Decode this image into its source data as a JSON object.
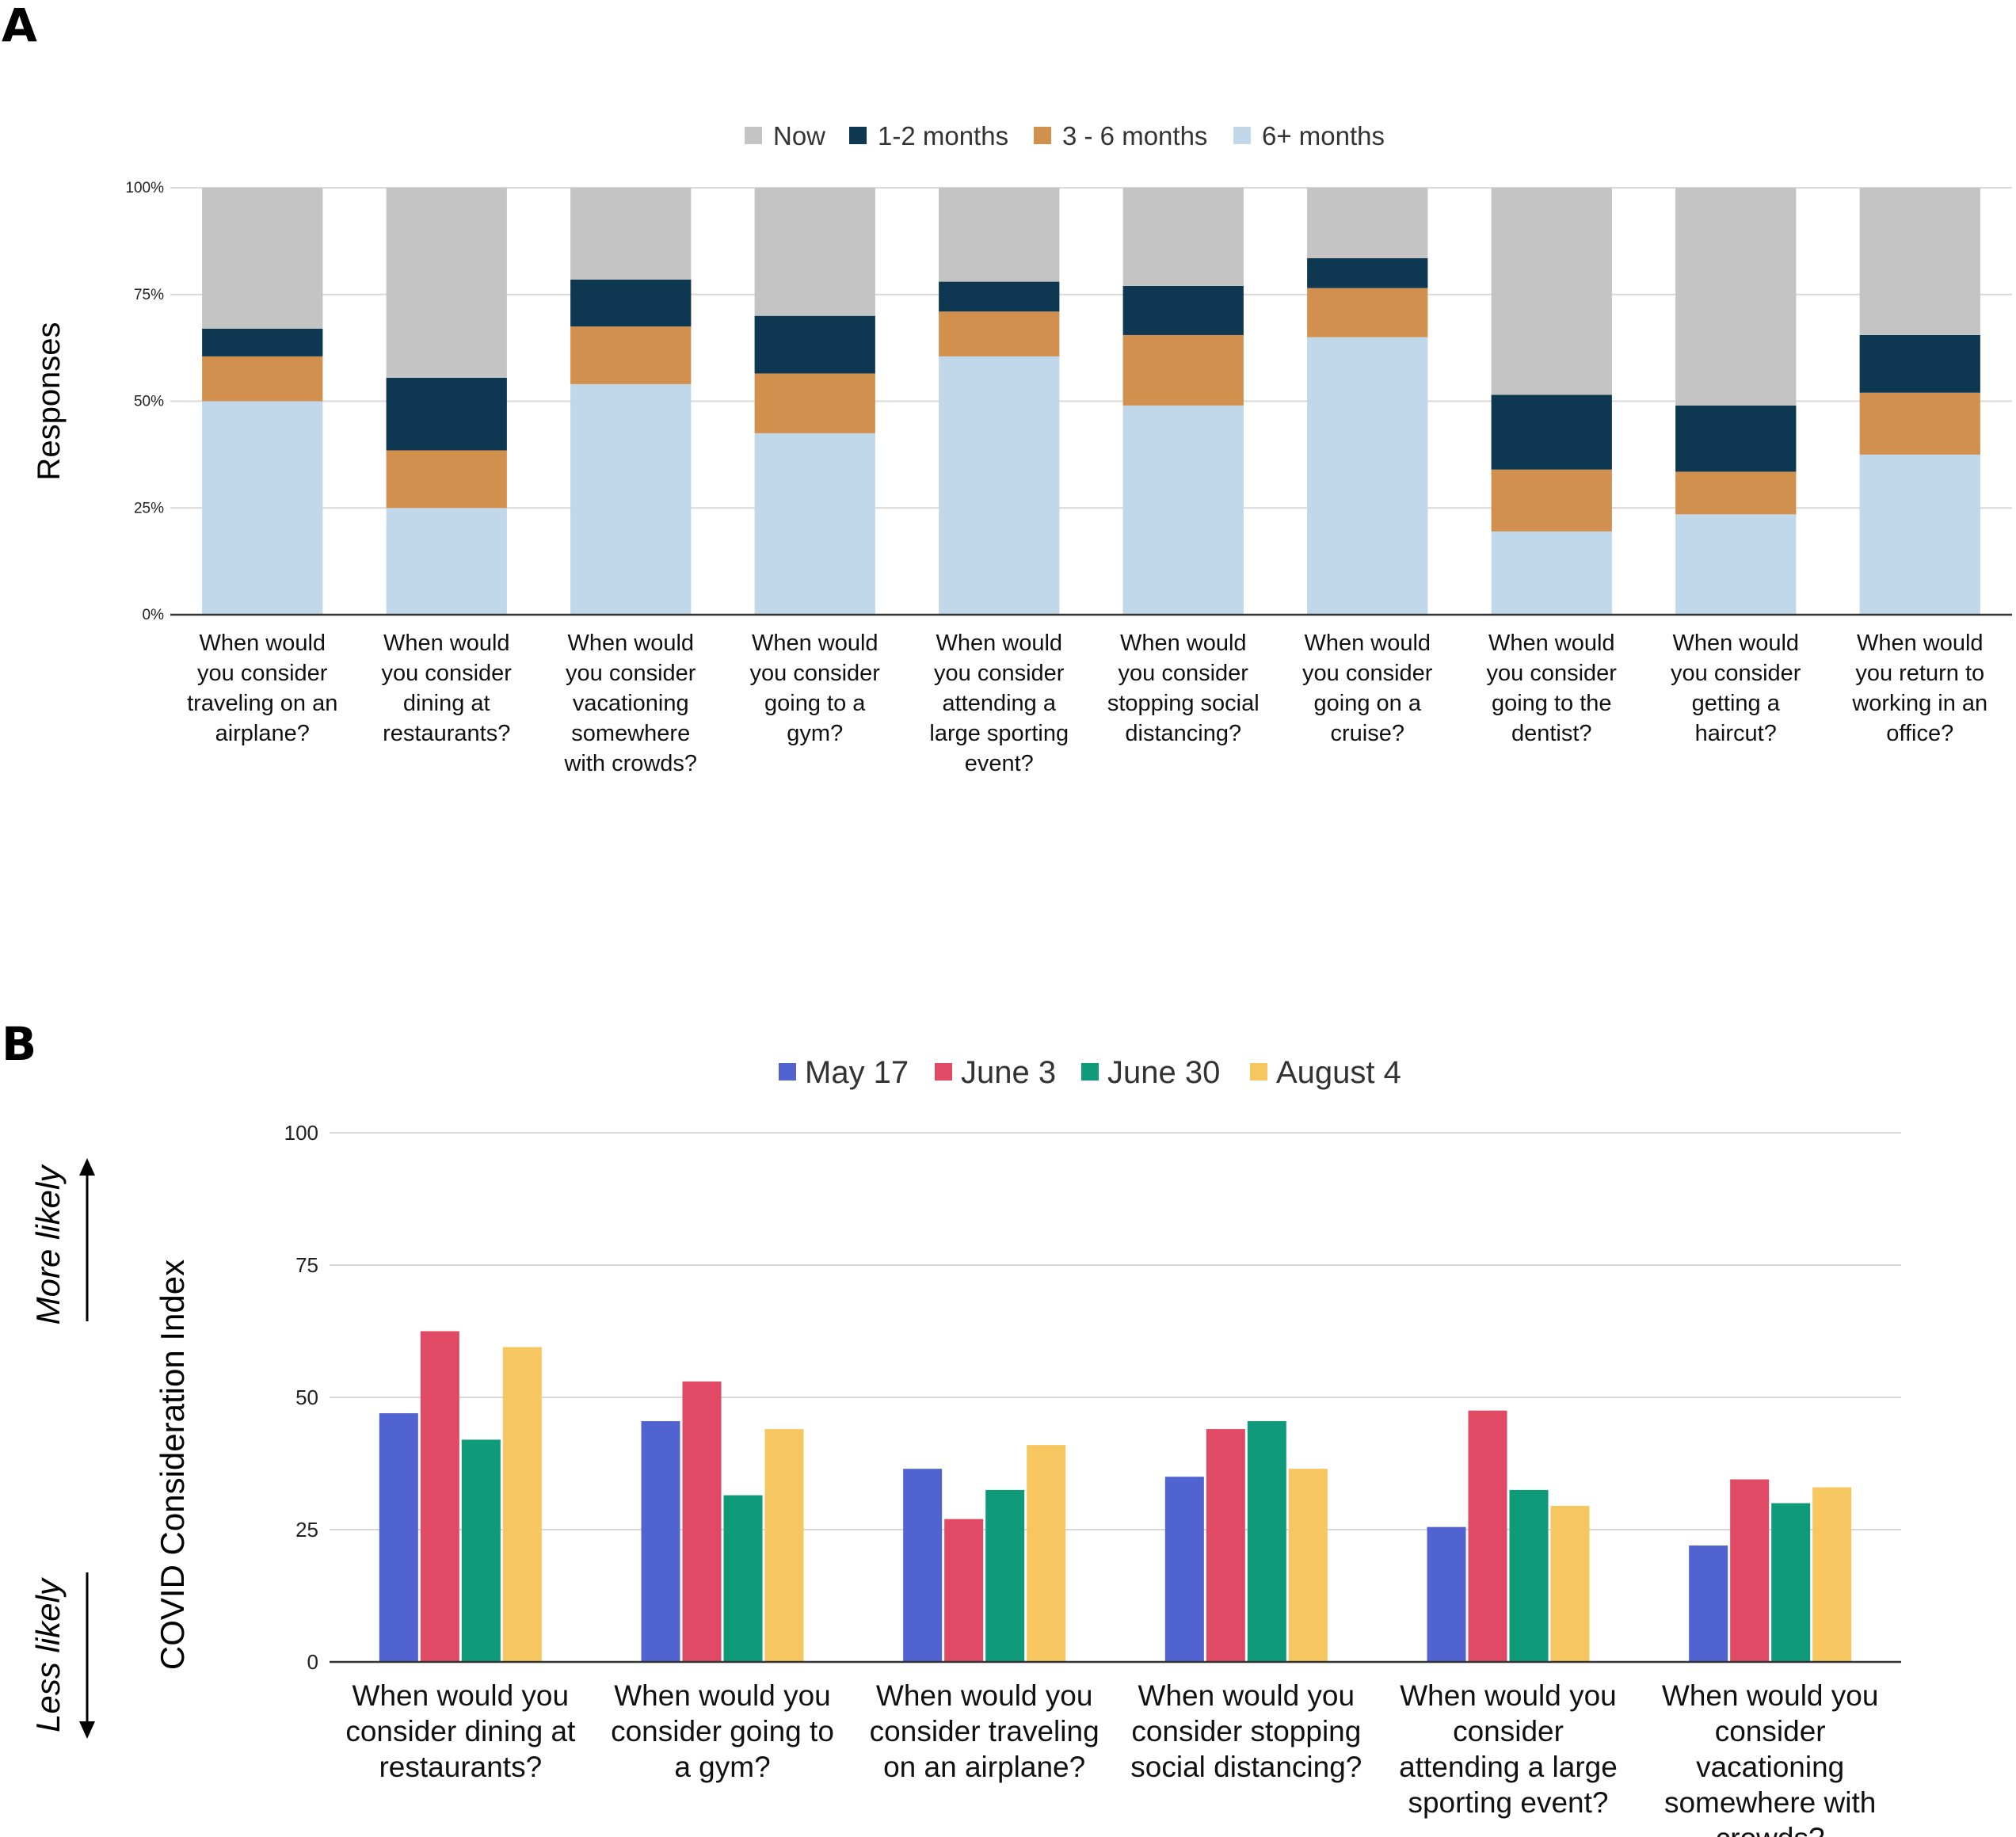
{
  "colors": {
    "now": "#c4c4c4",
    "m12": "#0e3751",
    "m36": "#d1904e",
    "m6p": "#c0d8ea",
    "may17": "#5163d1",
    "june3": "#e04a64",
    "june30": "#0f9b7a",
    "aug4": "#f6c761",
    "grid": "#d9d9d9",
    "axis": "#333333"
  },
  "chart_data": [
    {
      "panel": "A",
      "type": "bar",
      "stacked": true,
      "ylabel": "Responses",
      "ylim": [
        0,
        100
      ],
      "yticks": [
        0,
        25,
        50,
        75,
        100
      ],
      "ytick_labels": [
        "0%",
        "25%",
        "50%",
        "75%",
        "100%"
      ],
      "legend_position": "top-center",
      "categories": [
        [
          "When would",
          "you consider",
          "traveling on an",
          "airplane?"
        ],
        [
          "When would",
          "you consider",
          "dining at",
          "restaurants?"
        ],
        [
          "When would",
          "you consider",
          "vacationing",
          "somewhere",
          "with crowds?"
        ],
        [
          "When would",
          "you consider",
          "going to a",
          "gym?"
        ],
        [
          "When would",
          "you consider",
          "attending a",
          "large sporting",
          "event?"
        ],
        [
          "When would",
          "you consider",
          "stopping social",
          "distancing?"
        ],
        [
          "When would",
          "you consider",
          "going on a",
          "cruise?"
        ],
        [
          "When would",
          "you consider",
          "going to the",
          "dentist?"
        ],
        [
          "When would",
          "you consider",
          "getting a",
          "haircut?"
        ],
        [
          "When would",
          "you return to",
          "working in an",
          "office?"
        ]
      ],
      "series": [
        {
          "name": "6+ months",
          "color_key": "m6p",
          "values": [
            50,
            25,
            54,
            42.5,
            60.5,
            49,
            65,
            19.5,
            23.5,
            37.5
          ]
        },
        {
          "name": "3 - 6 months",
          "color_key": "m36",
          "values": [
            10.5,
            13.5,
            13.5,
            14,
            10.5,
            16.5,
            11.5,
            14.5,
            10,
            14.5
          ]
        },
        {
          "name": "1-2 months",
          "color_key": "m12",
          "values": [
            6.5,
            17,
            11,
            13.5,
            7,
            11.5,
            7,
            17.5,
            15.5,
            13.5
          ]
        },
        {
          "name": "Now",
          "color_key": "now",
          "values": [
            33,
            44.5,
            21.5,
            30,
            22,
            23,
            16.5,
            48.5,
            51,
            34.5
          ]
        }
      ],
      "legend_order": [
        "Now",
        "1-2 months",
        "3 - 6 months",
        "6+ months"
      ]
    },
    {
      "panel": "B",
      "type": "bar",
      "stacked": false,
      "ylabel": "COVID Consideration Index",
      "ylim": [
        0,
        100
      ],
      "yticks": [
        0,
        25,
        50,
        75,
        100
      ],
      "ytick_labels": [
        "0",
        "25",
        "50",
        "75",
        "100"
      ],
      "legend_position": "top-center",
      "annotations": {
        "up": "More likely",
        "down": "Less likely"
      },
      "categories": [
        [
          "When would you",
          "consider dining at",
          "restaurants?"
        ],
        [
          "When would you",
          "consider going to",
          "a gym?"
        ],
        [
          "When would you",
          "consider traveling",
          "on an airplane?"
        ],
        [
          "When would you",
          "consider stopping",
          "social distancing?"
        ],
        [
          "When would you",
          "consider",
          "attending a large",
          "sporting event?"
        ],
        [
          "When would you",
          "consider",
          "vacationing",
          "somewhere with",
          "crowds?"
        ]
      ],
      "series": [
        {
          "name": "May 17",
          "color_key": "may17",
          "values": [
            47,
            45.5,
            36.5,
            35,
            25.5,
            22
          ]
        },
        {
          "name": "June 3",
          "color_key": "june3",
          "values": [
            62.5,
            53,
            27,
            44,
            47.5,
            34.5
          ]
        },
        {
          "name": "June 30",
          "color_key": "june30",
          "values": [
            42,
            31.5,
            32.5,
            45.5,
            32.5,
            30
          ]
        },
        {
          "name": "August 4",
          "color_key": "aug4",
          "values": [
            59.5,
            44,
            41,
            36.5,
            29.5,
            33
          ]
        }
      ]
    }
  ],
  "panel_labels": [
    "A",
    "B"
  ]
}
